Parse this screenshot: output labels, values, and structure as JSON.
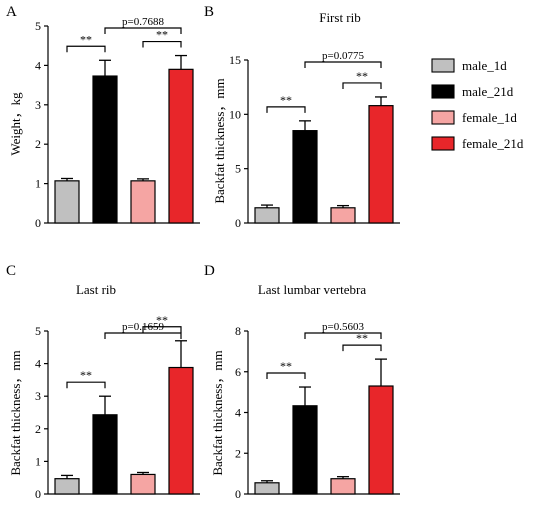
{
  "legend": [
    {
      "name": "male_1d",
      "color": "#c0c0c0"
    },
    {
      "name": "male_21d",
      "color": "#000000"
    },
    {
      "name": "female_1d",
      "color": "#f5a5a3"
    },
    {
      "name": "female_21d",
      "color": "#e8262a"
    }
  ],
  "chart_data": [
    {
      "type": "bar",
      "panel_label": "A",
      "title": "",
      "xlabel": "",
      "ylabel": "Weight，kg",
      "ylim": [
        0,
        5
      ],
      "yticks": [
        "0",
        "1",
        "2",
        "3",
        "4",
        "5"
      ],
      "categories": [
        "male_1d",
        "male_21d",
        "female_1d",
        "female_21d"
      ],
      "values": [
        1.07,
        3.73,
        1.07,
        3.9
      ],
      "errors": [
        0.06,
        0.4,
        0.05,
        0.35
      ],
      "colors": [
        "#c0c0c0",
        "#000000",
        "#f5a5a3",
        "#e8262a"
      ],
      "significance": [
        {
          "from": 0,
          "to": 1,
          "label": "**"
        },
        {
          "from": 2,
          "to": 3,
          "label": "**"
        },
        {
          "from": 1,
          "to": 3,
          "label": "p=0.7688"
        }
      ]
    },
    {
      "type": "bar",
      "panel_label": "B",
      "title": "First rib",
      "xlabel": "",
      "ylabel": "Backfat thickness，mm",
      "ylim": [
        0,
        15
      ],
      "yticks": [
        "0",
        "5",
        "10",
        "15"
      ],
      "categories": [
        "male_1d",
        "male_21d",
        "female_1d",
        "female_21d"
      ],
      "values": [
        1.4,
        8.5,
        1.4,
        10.8
      ],
      "errors": [
        0.25,
        0.9,
        0.2,
        0.8
      ],
      "colors": [
        "#c0c0c0",
        "#000000",
        "#f5a5a3",
        "#e8262a"
      ],
      "significance": [
        {
          "from": 0,
          "to": 1,
          "label": "**"
        },
        {
          "from": 2,
          "to": 3,
          "label": "**"
        },
        {
          "from": 1,
          "to": 3,
          "label": "p=0.0775"
        }
      ]
    },
    {
      "type": "bar",
      "panel_label": "C",
      "title": "Last rib",
      "xlabel": "",
      "ylabel": "Backfat thickness，mm",
      "ylim": [
        0,
        5
      ],
      "yticks": [
        "0",
        "1",
        "2",
        "3",
        "4",
        "5"
      ],
      "categories": [
        "male_1d",
        "male_21d",
        "female_1d",
        "female_21d"
      ],
      "values": [
        0.47,
        2.43,
        0.6,
        3.88
      ],
      "errors": [
        0.1,
        0.57,
        0.06,
        0.82
      ],
      "colors": [
        "#c0c0c0",
        "#000000",
        "#f5a5a3",
        "#e8262a"
      ],
      "significance": [
        {
          "from": 0,
          "to": 1,
          "label": "**"
        },
        {
          "from": 2,
          "to": 3,
          "label": "**"
        },
        {
          "from": 1,
          "to": 3,
          "label": "p=0.1659"
        }
      ]
    },
    {
      "type": "bar",
      "panel_label": "D",
      "title": "Last lumbar vertebra",
      "xlabel": "",
      "ylabel": "Backfat thickness，mm",
      "ylim": [
        0,
        8
      ],
      "yticks": [
        "0",
        "2",
        "4",
        "6",
        "8"
      ],
      "categories": [
        "male_1d",
        "male_21d",
        "female_1d",
        "female_21d"
      ],
      "values": [
        0.55,
        4.33,
        0.75,
        5.3
      ],
      "errors": [
        0.1,
        0.92,
        0.1,
        1.32
      ],
      "colors": [
        "#c0c0c0",
        "#000000",
        "#f5a5a3",
        "#e8262a"
      ],
      "significance": [
        {
          "from": 0,
          "to": 1,
          "label": "**"
        },
        {
          "from": 2,
          "to": 3,
          "label": "**"
        },
        {
          "from": 1,
          "to": 3,
          "label": "p=0.5603"
        }
      ]
    }
  ]
}
